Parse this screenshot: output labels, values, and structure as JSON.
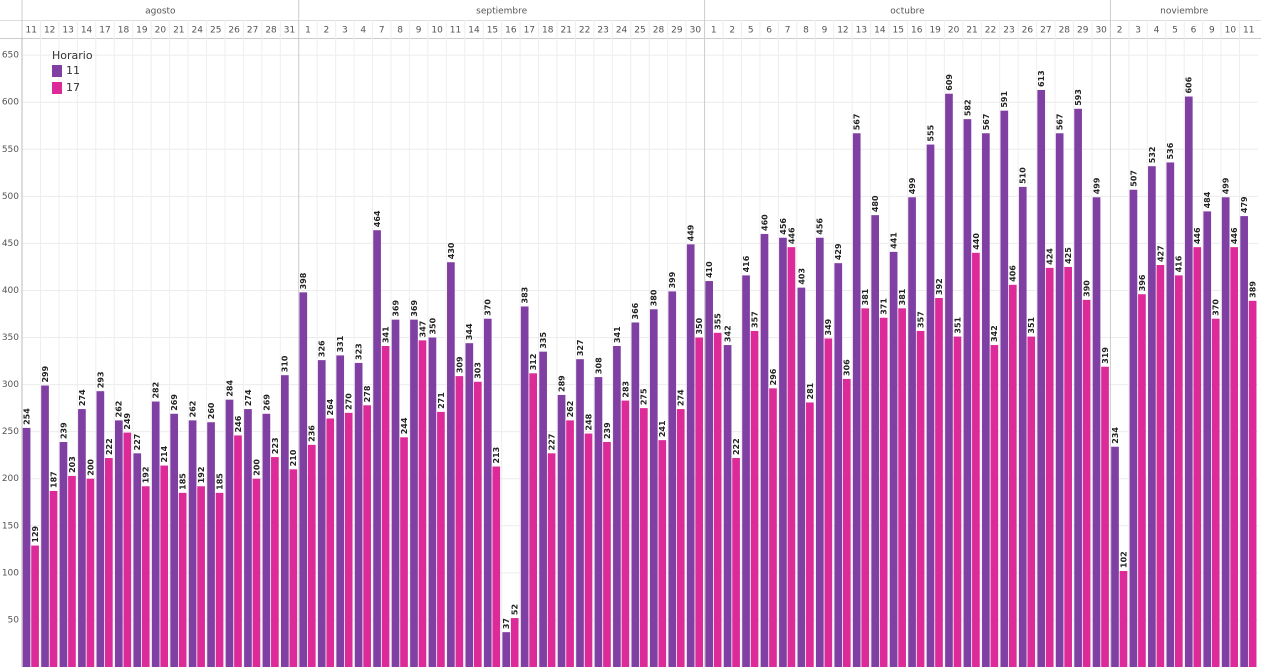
{
  "chart_data": {
    "type": "bar",
    "category_groups": [
      {
        "name": "agosto",
        "categories": [
          "11",
          "12",
          "13",
          "14",
          "17",
          "18",
          "19",
          "20",
          "21",
          "24",
          "25",
          "26",
          "27",
          "28",
          "31"
        ]
      },
      {
        "name": "septiembre",
        "categories": [
          "1",
          "2",
          "3",
          "4",
          "7",
          "8",
          "9",
          "10",
          "11",
          "14",
          "15",
          "16",
          "17",
          "18",
          "21",
          "22",
          "23",
          "24",
          "25",
          "28",
          "29",
          "30"
        ]
      },
      {
        "name": "octubre",
        "categories": [
          "1",
          "2",
          "5",
          "6",
          "7",
          "8",
          "9",
          "12",
          "13",
          "14",
          "15",
          "16",
          "19",
          "20",
          "21",
          "22",
          "23",
          "26",
          "27",
          "28",
          "29",
          "30"
        ]
      },
      {
        "name": "noviembre",
        "categories": [
          "2",
          "3",
          "4",
          "5",
          "6",
          "9",
          "10",
          "11"
        ]
      }
    ],
    "legend_title": "Horario",
    "series": [
      {
        "name": "11",
        "color": "#8040a3",
        "values": [
          254,
          299,
          239,
          274,
          293,
          262,
          227,
          282,
          269,
          262,
          260,
          284,
          274,
          269,
          310,
          398,
          326,
          331,
          323,
          464,
          369,
          369,
          350,
          430,
          344,
          370,
          37,
          383,
          335,
          289,
          327,
          308,
          341,
          366,
          380,
          399,
          449,
          410,
          342,
          416,
          460,
          456,
          403,
          456,
          429,
          567,
          480,
          441,
          499,
          555,
          609,
          582,
          567,
          591,
          510,
          613,
          567,
          593,
          499,
          234,
          507,
          532,
          536,
          606,
          484,
          499,
          479
        ]
      },
      {
        "name": "17",
        "color": "#dc2a98",
        "values": [
          129,
          187,
          203,
          200,
          222,
          249,
          192,
          214,
          185,
          192,
          185,
          246,
          200,
          223,
          210,
          236,
          264,
          270,
          278,
          341,
          244,
          347,
          271,
          309,
          303,
          213,
          52,
          312,
          227,
          262,
          248,
          239,
          283,
          275,
          241,
          274,
          350,
          355,
          222,
          357,
          296,
          446,
          281,
          349,
          306,
          381,
          371,
          381,
          357,
          392,
          351,
          440,
          342,
          406,
          351,
          424,
          425,
          390,
          319,
          102,
          396,
          427,
          416,
          446,
          370,
          446,
          389
        ]
      }
    ],
    "ylim": [
      0,
      665
    ],
    "yticks": [
      50,
      100,
      150,
      200,
      250,
      300,
      350,
      400,
      450,
      500,
      550,
      600,
      650
    ],
    "grid": true
  }
}
